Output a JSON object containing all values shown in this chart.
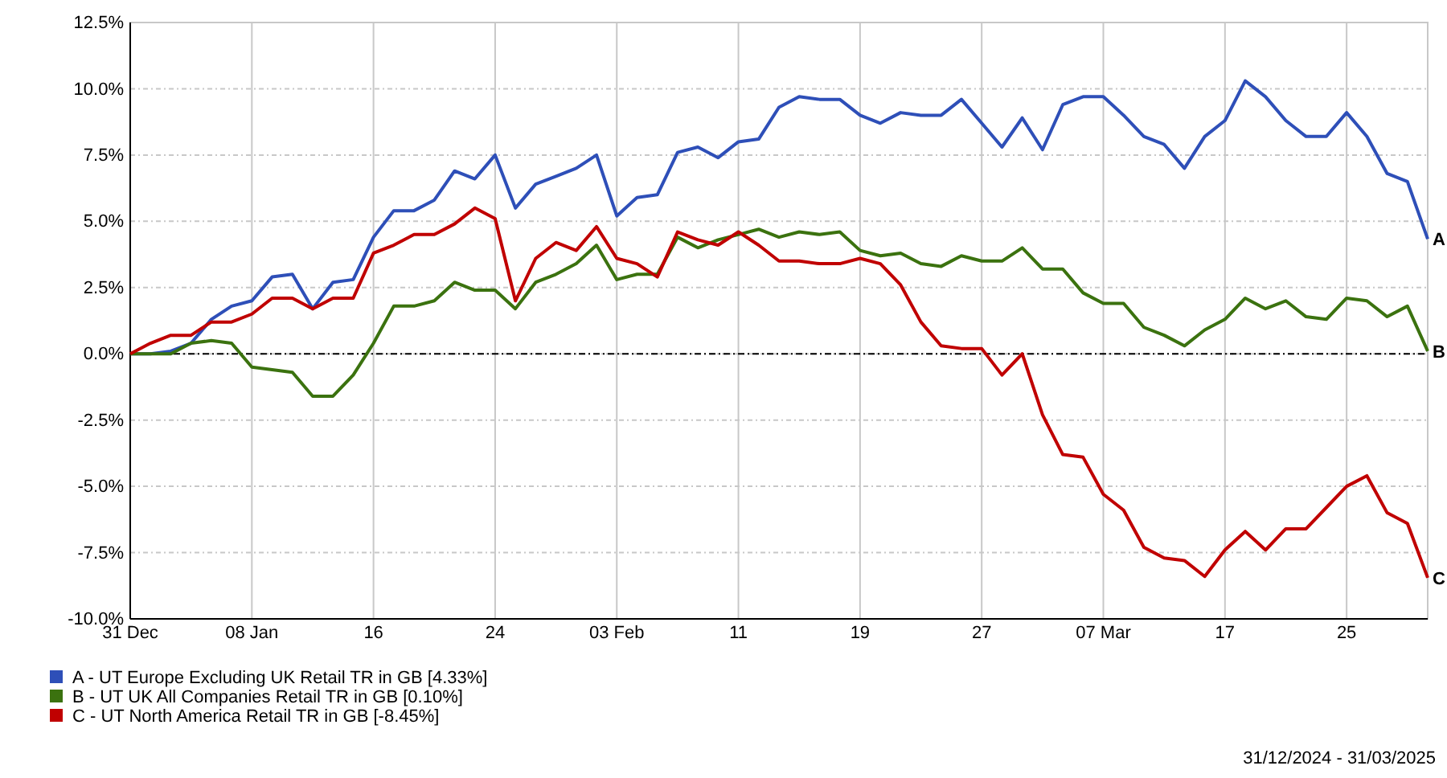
{
  "chart_data": {
    "type": "line",
    "categories": [
      "31 Dec",
      null,
      null,
      null,
      null,
      null,
      "08 Jan",
      null,
      null,
      null,
      null,
      null,
      "16",
      null,
      null,
      null,
      null,
      null,
      "24",
      null,
      null,
      null,
      null,
      null,
      "03 Feb",
      null,
      null,
      null,
      null,
      null,
      "11",
      null,
      null,
      null,
      null,
      null,
      "19",
      null,
      null,
      null,
      null,
      null,
      "27",
      null,
      null,
      null,
      null,
      null,
      "07 Mar",
      null,
      null,
      null,
      null,
      null,
      "17",
      null,
      null,
      null,
      null,
      null,
      "25",
      null,
      null,
      null,
      null
    ],
    "series": [
      {
        "name": "A - UT Europe Excluding UK Retail TR in GB [4.33%]",
        "color": "#2e4fb8",
        "values": [
          0,
          0,
          0.1,
          0.4,
          1.3,
          1.8,
          2.0,
          2.9,
          3.0,
          1.7,
          2.7,
          2.8,
          4.4,
          5.4,
          5.4,
          5.8,
          6.9,
          6.6,
          7.5,
          5.5,
          6.4,
          6.7,
          7.0,
          7.5,
          5.2,
          5.9,
          6.0,
          7.6,
          7.8,
          7.4,
          8.0,
          8.1,
          9.3,
          9.7,
          9.6,
          9.6,
          9.0,
          8.7,
          9.1,
          9.0,
          9.0,
          9.6,
          8.7,
          7.8,
          8.9,
          7.7,
          9.4,
          9.7,
          9.7,
          9.0,
          8.2,
          7.9,
          7.0,
          8.2,
          8.8,
          10.3,
          9.7,
          8.8,
          8.2,
          8.2,
          9.1,
          8.2,
          6.8,
          6.5,
          4.33
        ]
      },
      {
        "name": "B - UT UK All Companies Retail TR in GB [0.10%]",
        "color": "#3b720f",
        "values": [
          0,
          0,
          0,
          0.4,
          0.5,
          0.4,
          -0.5,
          -0.6,
          -0.7,
          -1.6,
          -1.6,
          -0.8,
          0.4,
          1.8,
          1.8,
          2.0,
          2.7,
          2.4,
          2.4,
          1.7,
          2.7,
          3.0,
          3.4,
          4.1,
          2.8,
          3.0,
          3.0,
          4.4,
          4.0,
          4.3,
          4.5,
          4.7,
          4.4,
          4.6,
          4.5,
          4.6,
          3.9,
          3.7,
          3.8,
          3.4,
          3.3,
          3.7,
          3.5,
          3.5,
          4.0,
          3.2,
          3.2,
          2.3,
          1.9,
          1.9,
          1.0,
          0.7,
          0.3,
          0.9,
          1.3,
          2.1,
          1.7,
          2.0,
          1.4,
          1.3,
          2.1,
          2.0,
          1.4,
          1.8,
          0.1
        ]
      },
      {
        "name": "C - UT North America Retail TR in GB [-8.45%]",
        "color": "#c00000",
        "values": [
          0,
          0.4,
          0.7,
          0.7,
          1.2,
          1.2,
          1.5,
          2.1,
          2.1,
          1.7,
          2.1,
          2.1,
          3.8,
          4.1,
          4.5,
          4.5,
          4.9,
          5.5,
          5.1,
          2.0,
          3.6,
          4.2,
          3.9,
          4.8,
          3.6,
          3.4,
          2.9,
          4.6,
          4.3,
          4.1,
          4.6,
          4.1,
          3.5,
          3.5,
          3.4,
          3.4,
          3.6,
          3.4,
          2.6,
          1.2,
          0.3,
          0.2,
          0.2,
          -0.8,
          0.0,
          -2.3,
          -3.8,
          -3.9,
          -5.3,
          -5.9,
          -7.3,
          -7.7,
          -7.8,
          -8.4,
          -7.4,
          -6.7,
          -7.4,
          -6.6,
          -6.6,
          -5.8,
          -5.0,
          -4.6,
          -6.0,
          -6.4,
          -8.45
        ]
      }
    ],
    "ylim": [
      -10,
      12.5
    ],
    "yticks": [
      {
        "value": -10,
        "label": "-10.0%"
      },
      {
        "value": -7.5,
        "label": "-7.5%"
      },
      {
        "value": -5,
        "label": "-5.0%"
      },
      {
        "value": -2.5,
        "label": "-2.5%"
      },
      {
        "value": 0,
        "label": "0.0%"
      },
      {
        "value": 2.5,
        "label": "2.5%"
      },
      {
        "value": 5,
        "label": "5.0%"
      },
      {
        "value": 7.5,
        "label": "7.5%"
      },
      {
        "value": 10,
        "label": "10.0%"
      },
      {
        "value": 12.5,
        "label": "12.5%"
      }
    ],
    "grid": true,
    "legend": "bottom left",
    "ref_lines": [
      {
        "axis": "y",
        "value": 0,
        "color": "#000000",
        "line_style": "dashed"
      }
    ],
    "annotations": [
      "A",
      "B",
      "C",
      "31/12/2024 - 31/03/2025"
    ]
  }
}
